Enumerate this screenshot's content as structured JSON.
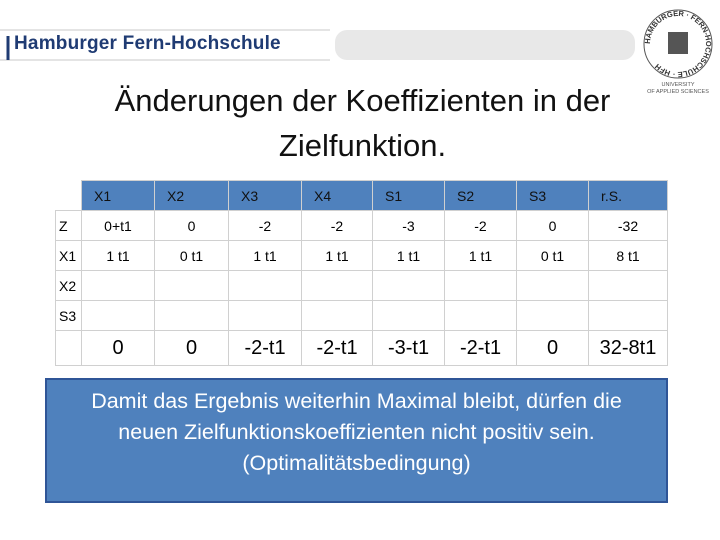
{
  "header": {
    "brand": "Hamburger Fern-Hochschule",
    "logo_ring": "HAMBURGER · FERN-HOCHSCHULE · HFH",
    "logo_sub1": "UNIVERSITY",
    "logo_sub2": "OF APPLIED SCIENCES"
  },
  "title": "Änderungen der Koeffizienten in der Zielfunktion.",
  "table": {
    "columns": [
      "X1",
      "X2",
      "X3",
      "X4",
      "S1",
      "S2",
      "S3",
      "r.S."
    ],
    "rows": [
      {
        "label": "Z",
        "cells": [
          "0+t1",
          "0",
          "-2",
          "-2",
          "-3",
          "-2",
          "0",
          "-32"
        ]
      },
      {
        "label": "X1",
        "cells": [
          "1 t1",
          "0 t1",
          "1 t1",
          "1 t1",
          "1 t1",
          "1 t1",
          "0 t1",
          "8 t1"
        ]
      },
      {
        "label": "X2"
      },
      {
        "label": "S3"
      },
      {
        "cells": [
          "0",
          "0",
          "-2-t1",
          "-2-t1",
          "-3-t1",
          "-2-t1",
          "0",
          "32-8t1"
        ]
      }
    ]
  },
  "callout": "Damit das Ergebnis weiterhin Maximal bleibt, dürfen die neuen Zielfunktionskoeffizienten nicht positiv sein. (Optimalitätsbedingung)"
}
